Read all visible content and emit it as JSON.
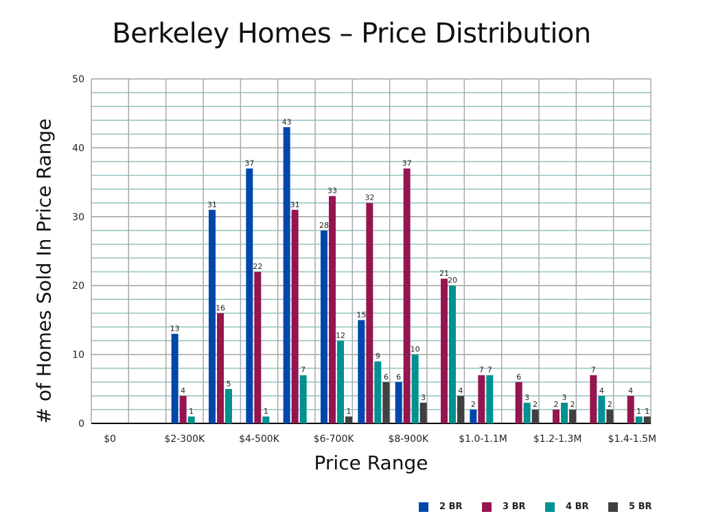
{
  "chart_data": {
    "type": "bar",
    "title": "Berkeley Homes – Price Distribution",
    "xlabel": "Price Range",
    "ylabel": "# of Homes Sold In Price Range",
    "ylim": [
      0,
      50
    ],
    "yticks": [
      0,
      10,
      20,
      30,
      40,
      50
    ],
    "grid": true,
    "legend_position": "bottom-right",
    "categories": [
      "$0",
      "",
      "$2-300K",
      "",
      "$4-500K",
      "",
      "$6-700K",
      "",
      "$8-900K",
      "",
      "$1.0-1.1M",
      "",
      "$1.2-1.3M",
      "",
      "$1.4-1.5M"
    ],
    "series": [
      {
        "name": "2 BR",
        "color": "#0047ab",
        "values": [
          0,
          0,
          13,
          31,
          37,
          43,
          28,
          15,
          6,
          0,
          2,
          0,
          0,
          0,
          0
        ]
      },
      {
        "name": "3 BR",
        "color": "#951550",
        "values": [
          0,
          0,
          4,
          16,
          22,
          31,
          33,
          32,
          37,
          21,
          7,
          6,
          2,
          7,
          4
        ]
      },
      {
        "name": "4 BR",
        "color": "#009190",
        "values": [
          0,
          0,
          1,
          5,
          1,
          7,
          12,
          9,
          10,
          20,
          7,
          3,
          3,
          4,
          1
        ]
      },
      {
        "name": "5 BR",
        "color": "#404040",
        "values": [
          0,
          0,
          0,
          0,
          0,
          0,
          1,
          6,
          3,
          4,
          0,
          2,
          2,
          2,
          1
        ]
      }
    ]
  }
}
